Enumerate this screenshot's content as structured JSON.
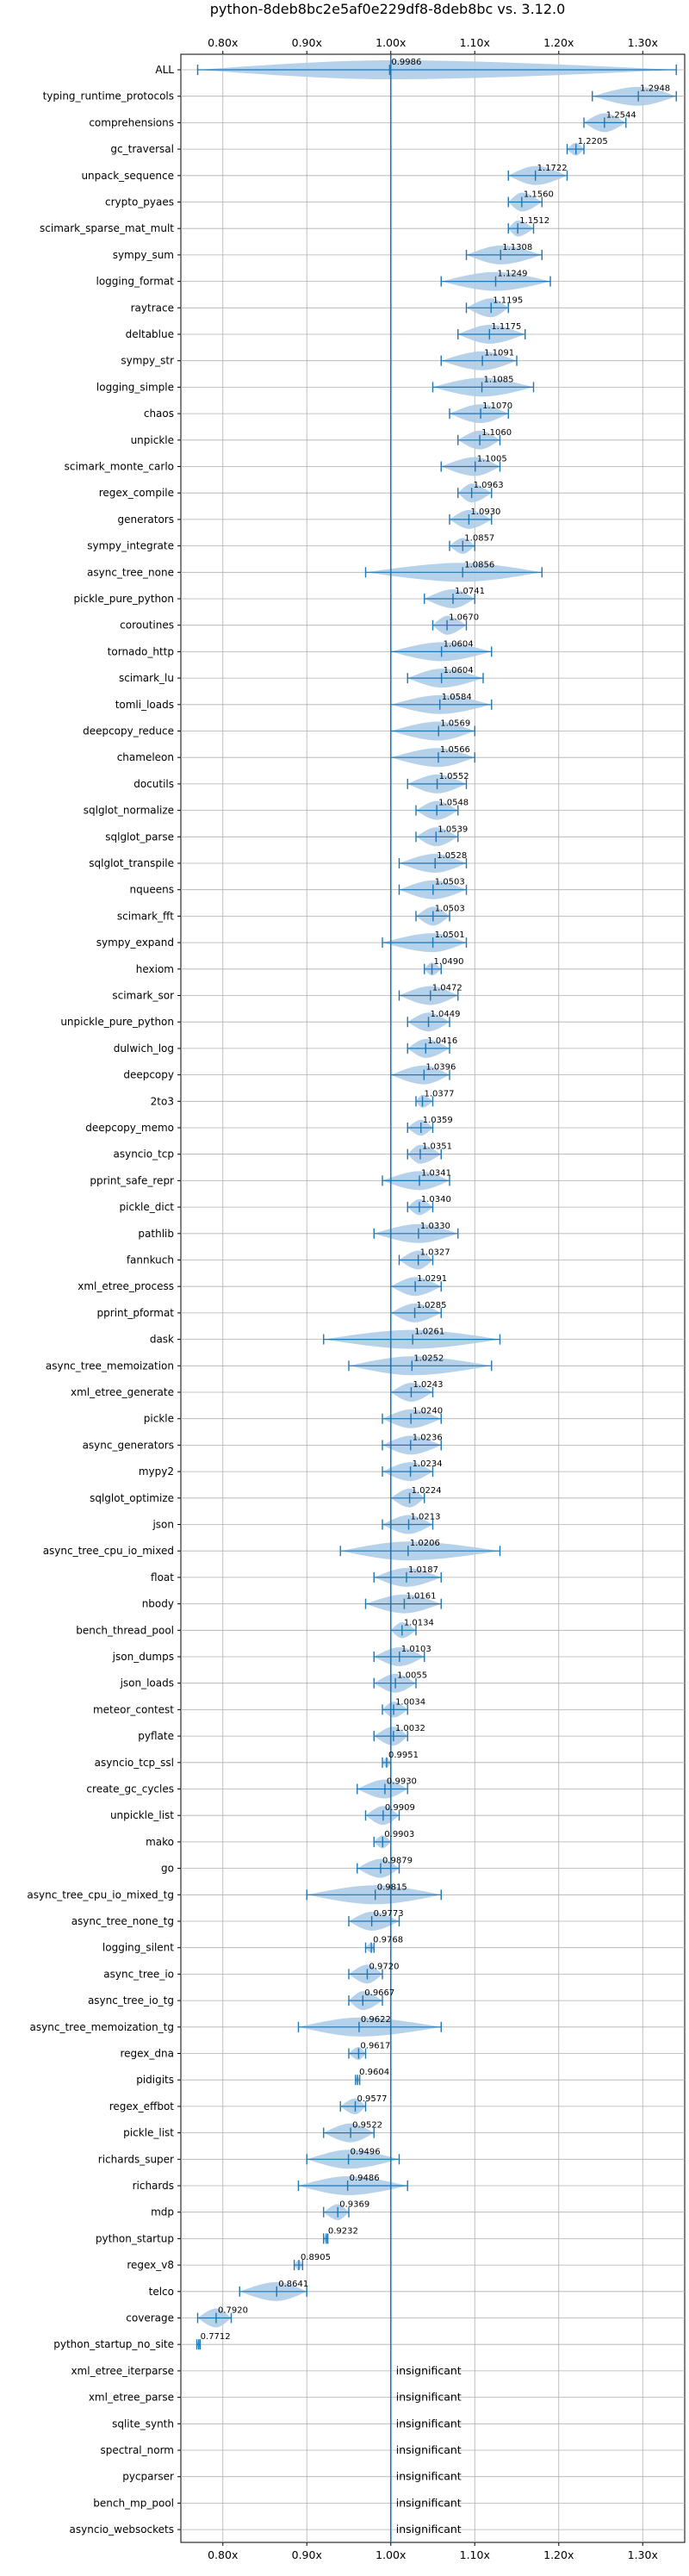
{
  "chart_data": {
    "type": "violin",
    "title": "python-8deb8bc2e5af0e229df8-8deb8bc vs. 3.12.0",
    "xlim": [
      0.75,
      1.35
    ],
    "xticks": [
      0.8,
      0.9,
      1.0,
      1.1,
      1.2,
      1.3
    ],
    "xtick_labels": [
      "0.80x",
      "0.90x",
      "1.00x",
      "1.10x",
      "1.20x",
      "1.30x"
    ],
    "grid": true,
    "reference_line": 1.0,
    "colors": {
      "violin": "#aecce8",
      "line": "#1f77b4",
      "grid": "#b0b0b0"
    },
    "rows": [
      {
        "name": "ALL",
        "value": 0.9986,
        "label": "0.9986",
        "min": 0.77,
        "max": 1.34
      },
      {
        "name": "typing_runtime_protocols",
        "value": 1.2948,
        "label": "1.2948",
        "min": 1.24,
        "max": 1.34
      },
      {
        "name": "comprehensions",
        "value": 1.2544,
        "label": "1.2544",
        "min": 1.23,
        "max": 1.28
      },
      {
        "name": "gc_traversal",
        "value": 1.2205,
        "label": "1.2205",
        "min": 1.21,
        "max": 1.23
      },
      {
        "name": "unpack_sequence",
        "value": 1.1722,
        "label": "1.1722",
        "min": 1.14,
        "max": 1.21
      },
      {
        "name": "crypto_pyaes",
        "value": 1.156,
        "label": "1.1560",
        "min": 1.14,
        "max": 1.18
      },
      {
        "name": "scimark_sparse_mat_mult",
        "value": 1.1512,
        "label": "1.1512",
        "min": 1.14,
        "max": 1.17
      },
      {
        "name": "sympy_sum",
        "value": 1.1308,
        "label": "1.1308",
        "min": 1.09,
        "max": 1.18
      },
      {
        "name": "logging_format",
        "value": 1.1249,
        "label": "1.1249",
        "min": 1.06,
        "max": 1.19
      },
      {
        "name": "raytrace",
        "value": 1.1195,
        "label": "1.1195",
        "min": 1.09,
        "max": 1.14
      },
      {
        "name": "deltablue",
        "value": 1.1175,
        "label": "1.1175",
        "min": 1.08,
        "max": 1.16
      },
      {
        "name": "sympy_str",
        "value": 1.1091,
        "label": "1.1091",
        "min": 1.06,
        "max": 1.15
      },
      {
        "name": "logging_simple",
        "value": 1.1085,
        "label": "1.1085",
        "min": 1.05,
        "max": 1.17
      },
      {
        "name": "chaos",
        "value": 1.107,
        "label": "1.1070",
        "min": 1.07,
        "max": 1.14
      },
      {
        "name": "unpickle",
        "value": 1.106,
        "label": "1.1060",
        "min": 1.08,
        "max": 1.13
      },
      {
        "name": "scimark_monte_carlo",
        "value": 1.1005,
        "label": "1.1005",
        "min": 1.06,
        "max": 1.13
      },
      {
        "name": "regex_compile",
        "value": 1.0963,
        "label": "1.0963",
        "min": 1.08,
        "max": 1.12
      },
      {
        "name": "generators",
        "value": 1.093,
        "label": "1.0930",
        "min": 1.07,
        "max": 1.12
      },
      {
        "name": "sympy_integrate",
        "value": 1.0857,
        "label": "1.0857",
        "min": 1.07,
        "max": 1.1
      },
      {
        "name": "async_tree_none",
        "value": 1.0856,
        "label": "1.0856",
        "min": 0.97,
        "max": 1.18
      },
      {
        "name": "pickle_pure_python",
        "value": 1.0741,
        "label": "1.0741",
        "min": 1.04,
        "max": 1.1
      },
      {
        "name": "coroutines",
        "value": 1.067,
        "label": "1.0670",
        "min": 1.05,
        "max": 1.09
      },
      {
        "name": "tornado_http",
        "value": 1.0604,
        "label": "1.0604",
        "min": 1.0,
        "max": 1.12
      },
      {
        "name": "scimark_lu",
        "value": 1.0604,
        "label": "1.0604",
        "min": 1.02,
        "max": 1.11
      },
      {
        "name": "tomli_loads",
        "value": 1.0584,
        "label": "1.0584",
        "min": 1.0,
        "max": 1.12
      },
      {
        "name": "deepcopy_reduce",
        "value": 1.0569,
        "label": "1.0569",
        "min": 1.0,
        "max": 1.1
      },
      {
        "name": "chameleon",
        "value": 1.0566,
        "label": "1.0566",
        "min": 1.0,
        "max": 1.1
      },
      {
        "name": "docutils",
        "value": 1.0552,
        "label": "1.0552",
        "min": 1.02,
        "max": 1.09
      },
      {
        "name": "sqlglot_normalize",
        "value": 1.0548,
        "label": "1.0548",
        "min": 1.03,
        "max": 1.08
      },
      {
        "name": "sqlglot_parse",
        "value": 1.0539,
        "label": "1.0539",
        "min": 1.03,
        "max": 1.08
      },
      {
        "name": "sqlglot_transpile",
        "value": 1.0528,
        "label": "1.0528",
        "min": 1.01,
        "max": 1.09
      },
      {
        "name": "nqueens",
        "value": 1.0503,
        "label": "1.0503",
        "min": 1.01,
        "max": 1.09
      },
      {
        "name": "scimark_fft",
        "value": 1.0503,
        "label": "1.0503",
        "min": 1.03,
        "max": 1.07
      },
      {
        "name": "sympy_expand",
        "value": 1.0501,
        "label": "1.0501",
        "min": 0.99,
        "max": 1.09
      },
      {
        "name": "hexiom",
        "value": 1.049,
        "label": "1.0490",
        "min": 1.04,
        "max": 1.06
      },
      {
        "name": "scimark_sor",
        "value": 1.0472,
        "label": "1.0472",
        "min": 1.01,
        "max": 1.08
      },
      {
        "name": "unpickle_pure_python",
        "value": 1.0449,
        "label": "1.0449",
        "min": 1.02,
        "max": 1.07
      },
      {
        "name": "dulwich_log",
        "value": 1.0416,
        "label": "1.0416",
        "min": 1.02,
        "max": 1.07
      },
      {
        "name": "deepcopy",
        "value": 1.0396,
        "label": "1.0396",
        "min": 1.0,
        "max": 1.07
      },
      {
        "name": "2to3",
        "value": 1.0377,
        "label": "1.0377",
        "min": 1.03,
        "max": 1.05
      },
      {
        "name": "deepcopy_memo",
        "value": 1.0359,
        "label": "1.0359",
        "min": 1.02,
        "max": 1.05
      },
      {
        "name": "asyncio_tcp",
        "value": 1.0351,
        "label": "1.0351",
        "min": 1.02,
        "max": 1.06
      },
      {
        "name": "pprint_safe_repr",
        "value": 1.0341,
        "label": "1.0341",
        "min": 0.99,
        "max": 1.07
      },
      {
        "name": "pickle_dict",
        "value": 1.034,
        "label": "1.0340",
        "min": 1.02,
        "max": 1.05
      },
      {
        "name": "pathlib",
        "value": 1.033,
        "label": "1.0330",
        "min": 0.98,
        "max": 1.08
      },
      {
        "name": "fannkuch",
        "value": 1.0327,
        "label": "1.0327",
        "min": 1.01,
        "max": 1.05
      },
      {
        "name": "xml_etree_process",
        "value": 1.0291,
        "label": "1.0291",
        "min": 1.0,
        "max": 1.06
      },
      {
        "name": "pprint_pformat",
        "value": 1.0285,
        "label": "1.0285",
        "min": 1.0,
        "max": 1.06
      },
      {
        "name": "dask",
        "value": 1.0261,
        "label": "1.0261",
        "min": 0.92,
        "max": 1.13
      },
      {
        "name": "async_tree_memoization",
        "value": 1.0252,
        "label": "1.0252",
        "min": 0.95,
        "max": 1.12
      },
      {
        "name": "xml_etree_generate",
        "value": 1.0243,
        "label": "1.0243",
        "min": 1.0,
        "max": 1.05
      },
      {
        "name": "pickle",
        "value": 1.024,
        "label": "1.0240",
        "min": 0.99,
        "max": 1.06
      },
      {
        "name": "async_generators",
        "value": 1.0236,
        "label": "1.0236",
        "min": 0.99,
        "max": 1.06
      },
      {
        "name": "mypy2",
        "value": 1.0234,
        "label": "1.0234",
        "min": 0.99,
        "max": 1.05
      },
      {
        "name": "sqlglot_optimize",
        "value": 1.0224,
        "label": "1.0224",
        "min": 1.0,
        "max": 1.04
      },
      {
        "name": "json",
        "value": 1.0213,
        "label": "1.0213",
        "min": 0.99,
        "max": 1.05
      },
      {
        "name": "async_tree_cpu_io_mixed",
        "value": 1.0206,
        "label": "1.0206",
        "min": 0.94,
        "max": 1.13
      },
      {
        "name": "float",
        "value": 1.0187,
        "label": "1.0187",
        "min": 0.98,
        "max": 1.06
      },
      {
        "name": "nbody",
        "value": 1.0161,
        "label": "1.0161",
        "min": 0.97,
        "max": 1.06
      },
      {
        "name": "bench_thread_pool",
        "value": 1.0134,
        "label": "1.0134",
        "min": 1.0,
        "max": 1.03
      },
      {
        "name": "json_dumps",
        "value": 1.0103,
        "label": "1.0103",
        "min": 0.98,
        "max": 1.04
      },
      {
        "name": "json_loads",
        "value": 1.0055,
        "label": "1.0055",
        "min": 0.98,
        "max": 1.03
      },
      {
        "name": "meteor_contest",
        "value": 1.0034,
        "label": "1.0034",
        "min": 0.99,
        "max": 1.02
      },
      {
        "name": "pyflate",
        "value": 1.0032,
        "label": "1.0032",
        "min": 0.98,
        "max": 1.02
      },
      {
        "name": "asyncio_tcp_ssl",
        "value": 0.9951,
        "label": "0.9951",
        "min": 0.99,
        "max": 1.0
      },
      {
        "name": "create_gc_cycles",
        "value": 0.993,
        "label": "0.9930",
        "min": 0.96,
        "max": 1.02
      },
      {
        "name": "unpickle_list",
        "value": 0.9909,
        "label": "0.9909",
        "min": 0.97,
        "max": 1.01
      },
      {
        "name": "mako",
        "value": 0.9903,
        "label": "0.9903",
        "min": 0.98,
        "max": 1.0
      },
      {
        "name": "go",
        "value": 0.9879,
        "label": "0.9879",
        "min": 0.96,
        "max": 1.01
      },
      {
        "name": "async_tree_cpu_io_mixed_tg",
        "value": 0.9815,
        "label": "0.9815",
        "min": 0.9,
        "max": 1.06
      },
      {
        "name": "async_tree_none_tg",
        "value": 0.9773,
        "label": "0.9773",
        "min": 0.95,
        "max": 1.01
      },
      {
        "name": "logging_silent",
        "value": 0.9768,
        "label": "0.9768",
        "min": 0.97,
        "max": 0.98
      },
      {
        "name": "async_tree_io",
        "value": 0.972,
        "label": "0.9720",
        "min": 0.95,
        "max": 0.99
      },
      {
        "name": "async_tree_io_tg",
        "value": 0.9667,
        "label": "0.9667",
        "min": 0.95,
        "max": 0.99
      },
      {
        "name": "async_tree_memoization_tg",
        "value": 0.9622,
        "label": "0.9622",
        "min": 0.89,
        "max": 1.06
      },
      {
        "name": "regex_dna",
        "value": 0.9617,
        "label": "0.9617",
        "min": 0.95,
        "max": 0.97
      },
      {
        "name": "pidigits",
        "value": 0.9604,
        "label": "0.9604",
        "min": 0.958,
        "max": 0.963
      },
      {
        "name": "regex_effbot",
        "value": 0.9577,
        "label": "0.9577",
        "min": 0.94,
        "max": 0.97
      },
      {
        "name": "pickle_list",
        "value": 0.9522,
        "label": "0.9522",
        "min": 0.92,
        "max": 0.98
      },
      {
        "name": "richards_super",
        "value": 0.9496,
        "label": "0.9496",
        "min": 0.9,
        "max": 1.01
      },
      {
        "name": "richards",
        "value": 0.9486,
        "label": "0.9486",
        "min": 0.89,
        "max": 1.02
      },
      {
        "name": "mdp",
        "value": 0.9369,
        "label": "0.9369",
        "min": 0.92,
        "max": 0.95
      },
      {
        "name": "python_startup",
        "value": 0.9232,
        "label": "0.9232",
        "min": 0.92,
        "max": 0.925
      },
      {
        "name": "regex_v8",
        "value": 0.8905,
        "label": "0.8905",
        "min": 0.885,
        "max": 0.895
      },
      {
        "name": "telco",
        "value": 0.8641,
        "label": "0.8641",
        "min": 0.82,
        "max": 0.9
      },
      {
        "name": "coverage",
        "value": 0.792,
        "label": "0.7920",
        "min": 0.77,
        "max": 0.81
      },
      {
        "name": "python_startup_no_site",
        "value": 0.7712,
        "label": "0.7712",
        "min": 0.769,
        "max": 0.773
      },
      {
        "name": "xml_etree_iterparse",
        "value": null,
        "label": "insignificant"
      },
      {
        "name": "xml_etree_parse",
        "value": null,
        "label": "insignificant"
      },
      {
        "name": "sqlite_synth",
        "value": null,
        "label": "insignificant"
      },
      {
        "name": "spectral_norm",
        "value": null,
        "label": "insignificant"
      },
      {
        "name": "pycparser",
        "value": null,
        "label": "insignificant"
      },
      {
        "name": "bench_mp_pool",
        "value": null,
        "label": "insignificant"
      },
      {
        "name": "asyncio_websockets",
        "value": null,
        "label": "insignificant"
      }
    ]
  }
}
